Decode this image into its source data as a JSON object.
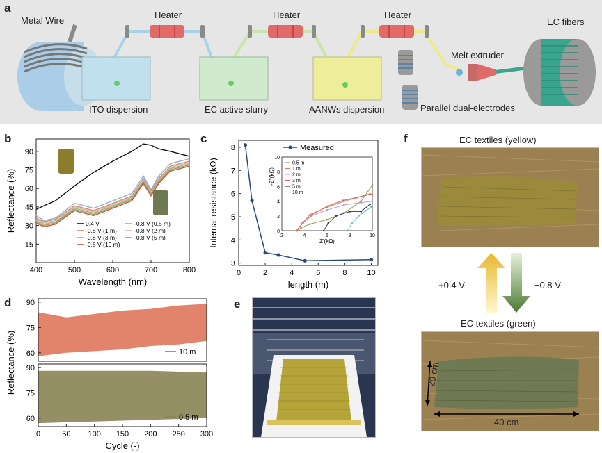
{
  "panels": {
    "a": "a",
    "b": "b",
    "c": "c",
    "d": "d",
    "e": "e",
    "f": "f"
  },
  "panel_a": {
    "metal_wire": "Metal Wire",
    "heater1": "Heater",
    "heater2": "Heater",
    "heater3": "Heater",
    "ec_fibers": "EC fibers",
    "melt_extruder": "Melt extruder",
    "ito": "ITO dispersion",
    "ec_slurry": "EC active slurry",
    "aanws": "AANWs dispersion",
    "electrodes": "Parallel dual-electrodes"
  },
  "panel_f": {
    "title_yellow": "EC textiles  (yellow)",
    "title_green": "EC textiles  (green)",
    "voltage_pos": "+0.4 V",
    "voltage_neg": "−0.8 V",
    "dim_width": "40 cm",
    "dim_height": "20 cm"
  },
  "colors": {
    "bg_a": "#e6e6e6",
    "heater": "#e06a6a",
    "cyan_box": "#bfe0ec",
    "green_box": "#cfeacc",
    "yellow_box": "#eeee9a",
    "fiber_green": "#3aa58f",
    "cyl_blue": "#a9cde8"
  },
  "chart_data": [
    {
      "id": "b",
      "type": "line",
      "xlabel": "Wavelength (nm)",
      "ylabel": "Reflectance (%)",
      "xlim": [
        400,
        800
      ],
      "ylim": [
        0,
        100
      ],
      "xticks": [
        "400",
        "500",
        "600",
        "700",
        "800"
      ],
      "yticks": [
        "15",
        "30",
        "45",
        "60",
        "75",
        "90"
      ],
      "x": [
        400,
        420,
        450,
        500,
        550,
        600,
        650,
        680,
        700,
        720,
        750,
        800
      ],
      "series": [
        {
          "name": "0.4 V",
          "color": "#111111",
          "values": [
            43,
            46,
            50,
            62,
            73,
            82,
            90,
            96,
            95,
            92,
            90,
            86
          ]
        },
        {
          "name": "-0.8 V (0.5 m)",
          "color": "#8eb0d0",
          "values": [
            38,
            34,
            36,
            48,
            44,
            50,
            56,
            70,
            59,
            70,
            80,
            84
          ]
        },
        {
          "name": "-0.8 V (1 m)",
          "color": "#d9826a",
          "values": [
            36,
            33,
            35,
            46,
            42,
            48,
            54,
            68,
            58,
            68,
            78,
            82
          ]
        },
        {
          "name": "-0.8 V (2 m)",
          "color": "#e2b49a",
          "values": [
            35,
            32,
            34,
            45,
            41,
            47,
            53,
            67,
            57,
            67,
            77,
            81
          ]
        },
        {
          "name": "-0.8 V (3 m)",
          "color": "#8fb89a",
          "values": [
            34,
            31,
            33,
            44,
            40,
            46,
            52,
            66,
            56,
            66,
            76,
            80
          ]
        },
        {
          "name": "-0.8 V (5 m)",
          "color": "#9f9c5a",
          "values": [
            33,
            30,
            32,
            43,
            39,
            45,
            51,
            65,
            55,
            65,
            75,
            79
          ]
        },
        {
          "name": "-0.8 V (10 m)",
          "color": "#c85a3c",
          "values": [
            32,
            29,
            31,
            42,
            38,
            44,
            50,
            64,
            54,
            64,
            74,
            78
          ]
        }
      ]
    },
    {
      "id": "c",
      "type": "line",
      "xlabel": "length (m)",
      "ylabel": "Internal resistance (kΩ)",
      "xlim": [
        0,
        10.5
      ],
      "ylim": [
        2.9,
        8.3
      ],
      "xticks": [
        "0",
        "2",
        "4",
        "6",
        "8",
        "10"
      ],
      "yticks": [
        "3",
        "4",
        "5",
        "6",
        "7",
        "8"
      ],
      "legend": "Measured",
      "x": [
        0.5,
        1,
        2,
        3,
        5,
        10
      ],
      "values": [
        8.1,
        5.7,
        3.45,
        3.35,
        3.1,
        3.15
      ],
      "inset": {
        "xlabel": "Z'(kΩ)",
        "ylabel": "-Z''(kΩ)",
        "xticks": [
          "2",
          "4",
          "6",
          "8",
          "10"
        ],
        "yticks": [
          "0",
          "2",
          "4",
          "6",
          "8",
          "10"
        ],
        "series": [
          {
            "name": "0.5 m",
            "color": "#9a9a55",
            "points": [
              [
                3.3,
                0
              ],
              [
                3.7,
                0.4
              ],
              [
                4.5,
                0.9
              ],
              [
                6,
                1.5
              ],
              [
                7.5,
                2.4
              ],
              [
                9,
                4
              ],
              [
                10,
                6.2
              ]
            ]
          },
          {
            "name": "1 m",
            "color": "#d9826a",
            "points": [
              [
                3.3,
                0
              ],
              [
                3.8,
                1
              ],
              [
                4.5,
                2.2
              ],
              [
                6,
                3.2
              ],
              [
                7.5,
                4
              ],
              [
                9,
                4.6
              ],
              [
                10,
                5
              ]
            ]
          },
          {
            "name": "2 m",
            "color": "#b5a0c8",
            "points": [
              [
                3.3,
                0
              ],
              [
                3.8,
                1
              ],
              [
                4.6,
                2
              ],
              [
                6,
                2.8
              ],
              [
                7.5,
                3.5
              ],
              [
                9,
                3.8
              ],
              [
                10,
                4
              ]
            ]
          },
          {
            "name": "3 m",
            "color": "#e06a5a",
            "points": [
              [
                3.3,
                0
              ],
              [
                3.9,
                1.1
              ],
              [
                4.7,
                2.2
              ],
              [
                6,
                3.3
              ],
              [
                7.4,
                4.1
              ],
              [
                8.6,
                4.5
              ],
              [
                9.8,
                5
              ]
            ]
          },
          {
            "name": "5 m",
            "color": "#223a70",
            "points": [
              [
                5.7,
                0
              ],
              [
                6.1,
                1
              ],
              [
                6.8,
                2
              ],
              [
                8,
                2.6
              ],
              [
                9,
                2.6
              ],
              [
                9.8,
                3.6
              ]
            ]
          },
          {
            "name": "10 m",
            "color": "#7cb6c8",
            "points": [
              [
                7.8,
                0
              ],
              [
                8.2,
                1
              ],
              [
                8.8,
                2
              ],
              [
                9.4,
                2.7
              ],
              [
                9.9,
                3.2
              ]
            ]
          }
        ]
      }
    },
    {
      "id": "d",
      "type": "area",
      "xlabel": "Cycle (-)",
      "ylabel": "Reflectance (%)",
      "xlim": [
        0,
        300
      ],
      "xticks": [
        "0",
        "50",
        "100",
        "150",
        "200",
        "250",
        "300"
      ],
      "top_panel": {
        "name": "10 m",
        "color": "#e07a5f",
        "ylim": [
          55,
          92
        ],
        "yticks": [
          "60",
          "75",
          "90"
        ],
        "upper": [
          [
            0,
            84
          ],
          [
            50,
            81
          ],
          [
            100,
            83
          ],
          [
            150,
            85
          ],
          [
            200,
            86
          ],
          [
            250,
            88
          ],
          [
            300,
            89
          ]
        ],
        "lower": [
          [
            0,
            58
          ],
          [
            50,
            60
          ],
          [
            100,
            61
          ],
          [
            150,
            62
          ],
          [
            200,
            64
          ],
          [
            250,
            65
          ],
          [
            300,
            67
          ]
        ]
      },
      "bottom_panel": {
        "name": "0.5 m",
        "color": "#8b8558",
        "ylim": [
          55,
          92
        ],
        "yticks": [
          "60",
          "75",
          "90"
        ],
        "upper": [
          [
            0,
            88
          ],
          [
            100,
            88
          ],
          [
            200,
            88
          ],
          [
            300,
            87
          ]
        ],
        "lower": [
          [
            0,
            57
          ],
          [
            100,
            58
          ],
          [
            200,
            59
          ],
          [
            300,
            60
          ]
        ]
      }
    }
  ]
}
